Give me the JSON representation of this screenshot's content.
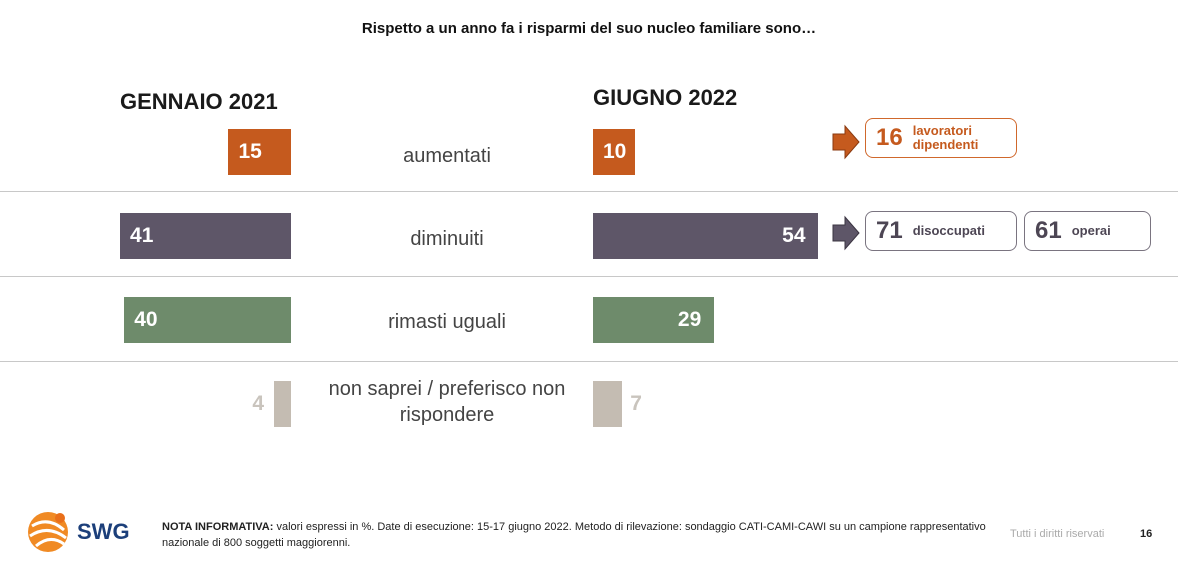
{
  "title": "Rispetto a un anno fa i risparmi del suo nucleo familiare sono…",
  "chart_data": {
    "type": "bar",
    "title": "Rispetto a un anno fa i risparmi del suo nucleo familiare sono…",
    "categories": [
      "aumentati",
      "diminuiti",
      "rimasti uguali",
      "non saprei / preferisco non rispondere"
    ],
    "series": [
      {
        "name": "GENNAIO 2021",
        "values": [
          15,
          41,
          40,
          4
        ]
      },
      {
        "name": "GIUGNO 2022",
        "values": [
          10,
          54,
          29,
          7
        ]
      }
    ],
    "colors": [
      "#c55a1e",
      "#5e5668",
      "#6e8b6b",
      "#c4bcb2"
    ]
  },
  "callouts": [
    {
      "value": "16",
      "label_line1": "lavoratori",
      "label_line2": "dipendenti",
      "color": "#c55a1e"
    },
    {
      "value": "71",
      "label": "disoccupati",
      "color": "#4d4654"
    },
    {
      "value": "61",
      "label": "operai",
      "color": "#4d4654"
    }
  ],
  "footer": {
    "note_label": "NOTA INFORMATIVA:",
    "note_text": " valori espressi in %. Date di esecuzione: 15-17 giugno 2022. Metodo di rilevazione: sondaggio CATI-CAMI-CAWI su un campione rappresentativo nazionale di 800 soggetti maggiorenni.",
    "rights": "Tutti i diritti riservati",
    "page": "16",
    "logo_text": "SWG"
  }
}
